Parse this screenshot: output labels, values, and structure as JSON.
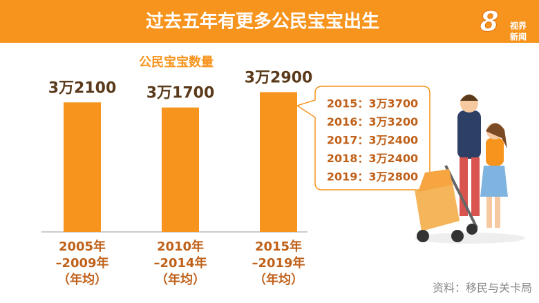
{
  "chart_data": {
    "type": "bar",
    "title": "过去五年有更多公民宝宝出生",
    "subtitle": "公民宝宝数量",
    "categories": [
      "2005年\n–2009年\n（年均）",
      "2010年\n–2014年\n（年均）",
      "2015年\n–2019年\n（年均）"
    ],
    "values": [
      32100,
      31700,
      32900
    ],
    "value_labels": [
      "3万2100",
      "3万1700",
      "3万2900"
    ],
    "color": "#f7941d",
    "ylim": [
      22000,
      34000
    ],
    "annotations": [
      "2015：3万3700",
      "2016：3万3200",
      "2017：3万2400",
      "2018：3万2400",
      "2019：3万2800"
    ],
    "source": "资料：移民与关卡局"
  },
  "logo": {
    "number": "8",
    "line1": "视界",
    "line2": "新闻"
  }
}
